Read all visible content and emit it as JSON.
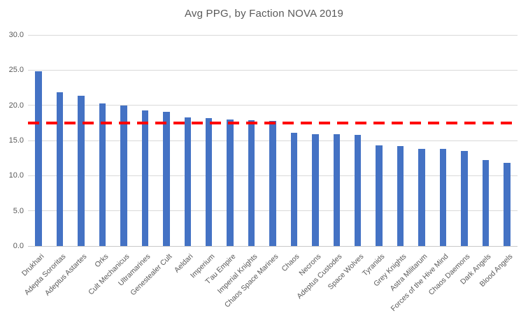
{
  "chart_data": {
    "type": "bar",
    "title": "Avg PPG, by Faction NOVA 2019",
    "categories": [
      "Drukhari",
      "Adepta Sororitas",
      "Adeptus Astartes",
      "Orks",
      "Cult Mechanicus",
      "Ultramarines",
      "Genestealer Cult",
      "Aeldari",
      "Imperium",
      "T'au Empire",
      "Imperial Knights",
      "Chaos Space Marines",
      "Chaos",
      "Necrons",
      "Adeptus Custodes",
      "Space Wolves",
      "Tyranids",
      "Grey Knights",
      "Astra Militarum",
      "Forces of the Hive Mind",
      "Chaos Daemons",
      "Dark Angels",
      "Blood Angels"
    ],
    "values": [
      24.8,
      21.9,
      21.4,
      20.3,
      20.0,
      19.3,
      19.1,
      18.3,
      18.2,
      18.0,
      17.9,
      17.8,
      16.1,
      15.9,
      15.9,
      15.8,
      14.3,
      14.2,
      13.8,
      13.8,
      13.5,
      12.2,
      11.8
    ],
    "xlabel": "",
    "ylabel": "",
    "ylim": [
      0,
      30
    ],
    "ytick_interval": 5,
    "ytick_labels": [
      "0.0",
      "5.0",
      "10.0",
      "15.0",
      "20.0",
      "25.0",
      "30.0"
    ],
    "grid": true,
    "legend": "none",
    "reference_line": {
      "value": 17.5,
      "style": "dashed"
    }
  },
  "colors": {
    "bar": "#4472c4",
    "reference_line": "#ff0000",
    "gridline": "#d9d9d9",
    "axis_line": "#c9c9c9",
    "text": "#595959",
    "background": "#ffffff"
  }
}
